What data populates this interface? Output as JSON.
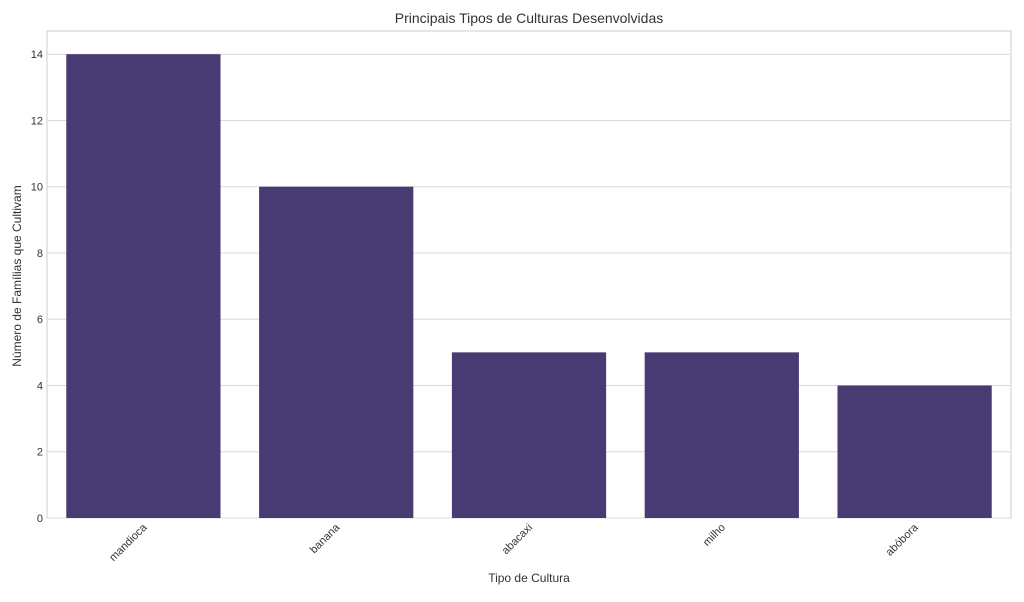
{
  "chart_data": {
    "type": "bar",
    "title": "Principais Tipos de Culturas Desenvolvidas",
    "xlabel": "Tipo de Cultura",
    "ylabel": "Número de Famílias que Cultivam",
    "categories": [
      "mandioca",
      "banana",
      "abacaxi",
      "milho",
      "abóbora"
    ],
    "values": [
      14,
      10,
      5,
      5,
      4
    ],
    "ylim": [
      0,
      14.7
    ],
    "yticks": [
      0,
      2,
      4,
      6,
      8,
      10,
      12,
      14
    ],
    "grid": true,
    "legend": "none",
    "bar_color": "#483a73"
  }
}
